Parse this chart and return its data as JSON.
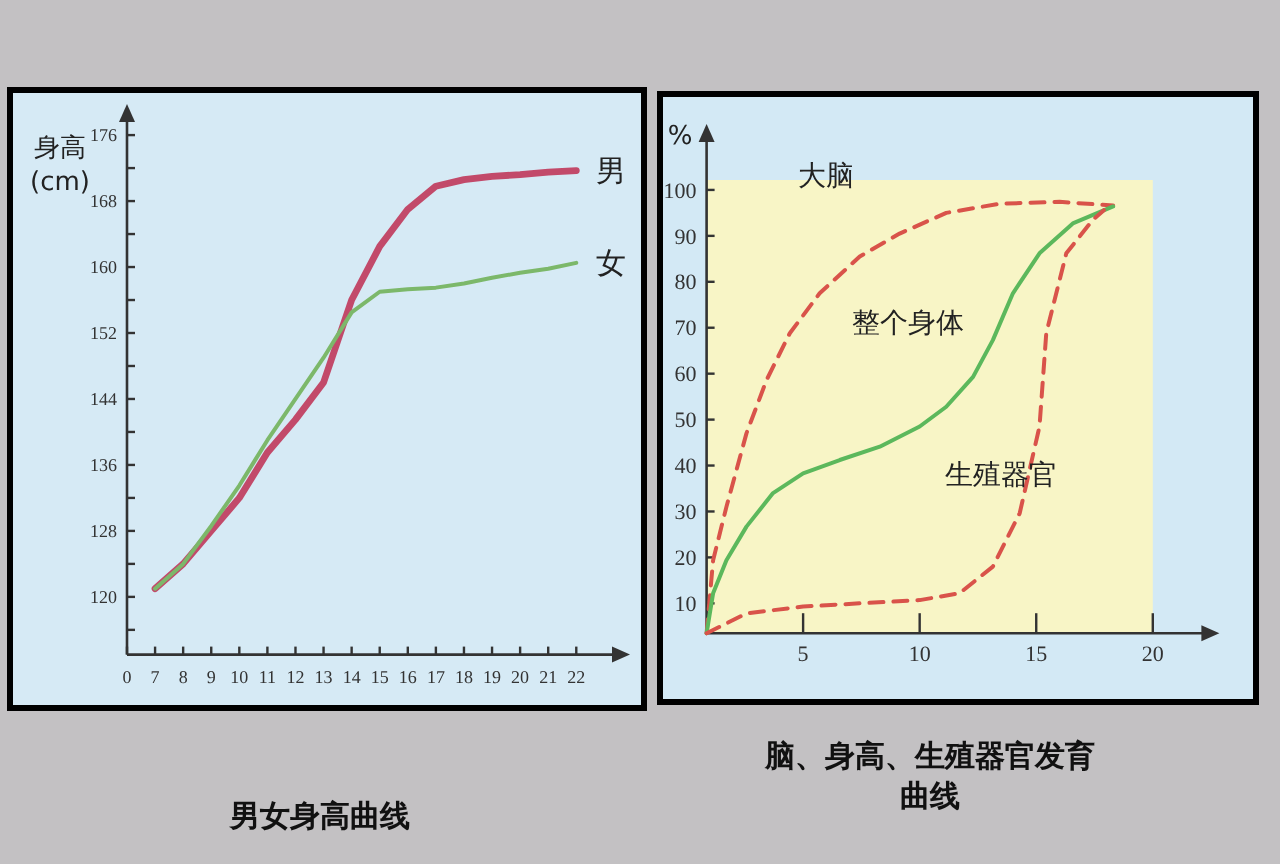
{
  "chart_data": [
    {
      "type": "line",
      "title": "男女身高曲线",
      "ylabel": "身高(cm)",
      "categories": [
        "0",
        "7",
        "8",
        "9",
        "10",
        "11",
        "12",
        "13",
        "14",
        "15",
        "16",
        "17",
        "18",
        "19",
        "20",
        "21",
        "22"
      ],
      "ylim": [
        113,
        178
      ],
      "yticks": [
        {
          "value": 116,
          "label": null
        },
        120,
        {
          "value": 124,
          "label": null
        },
        128,
        {
          "value": 132,
          "label": null
        },
        136,
        {
          "value": 140,
          "label": null
        },
        144,
        {
          "value": 148,
          "label": null
        },
        152,
        {
          "value": 156,
          "label": null
        },
        160,
        {
          "value": 164,
          "label": null
        },
        168,
        {
          "value": 172,
          "label": null
        },
        176
      ],
      "series": [
        {
          "name": "男",
          "color": "#c24a6a",
          "values": [
            null,
            121,
            124,
            128,
            132,
            137.5,
            141.5,
            146,
            156,
            162.5,
            167,
            169.8,
            170.6,
            171,
            171.2,
            171.5,
            171.7
          ]
        },
        {
          "name": "女",
          "color": "#7cb86a",
          "values": [
            null,
            121,
            124,
            128.6,
            133.5,
            139,
            144,
            149,
            154.5,
            157,
            157.3,
            157.5,
            158,
            158.7,
            159.3,
            159.8,
            160.5
          ]
        }
      ]
    },
    {
      "type": "line",
      "title": "脑、身高、生殖器官发育曲线",
      "ylabel": "%",
      "xlim": [
        0.86,
        22.6
      ],
      "ylim": [
        3.5,
        112
      ],
      "bands": [
        {
          "axis": "x",
          "from": 0.86,
          "to": 20,
          "color": "#f8f5c6"
        }
      ],
      "xticks": [
        5,
        10,
        15,
        20
      ],
      "yticks": [
        10,
        20,
        30,
        40,
        50,
        60,
        70,
        80,
        90,
        100
      ],
      "series": [
        {
          "name": "大脑",
          "color": "#d9534a",
          "line_style": "dashed",
          "x": [
            0.86,
            1.14,
            1.71,
            2.57,
            3.43,
            4.43,
            5.71,
            7.43,
            9.14,
            11.14,
            13.43,
            16,
            18.3
          ],
          "values": [
            3.5,
            19.4,
            31,
            47,
            58.6,
            68.8,
            77.5,
            85.5,
            90.5,
            95,
            97,
            97.4,
            96.6
          ]
        },
        {
          "name": "整个身体",
          "color": "#5cb85c",
          "line_style": "solid",
          "x": [
            0.86,
            1.14,
            1.71,
            2.57,
            3.71,
            5,
            6.57,
            8.29,
            10,
            11.14,
            12.29,
            13.14,
            14,
            15.14,
            16.57,
            18.3
          ],
          "values": [
            3.5,
            12.2,
            19.4,
            26.7,
            34,
            38.3,
            41.2,
            44.1,
            48.5,
            52.8,
            59.3,
            67.3,
            77.5,
            86.2,
            92.7,
            96.4
          ]
        },
        {
          "name": "生殖器官",
          "color": "#d9534a",
          "line_style": "dashed",
          "x": [
            0.86,
            2.57,
            5,
            7.43,
            10,
            11.71,
            13.14,
            14.29,
            15.14,
            15.43,
            16.29,
            17.43,
            17.9
          ],
          "values": [
            3.5,
            7.8,
            9.3,
            10,
            10.7,
            12.2,
            18,
            29.6,
            48.5,
            68.8,
            86.2,
            93.5,
            95.6
          ]
        }
      ]
    }
  ]
}
